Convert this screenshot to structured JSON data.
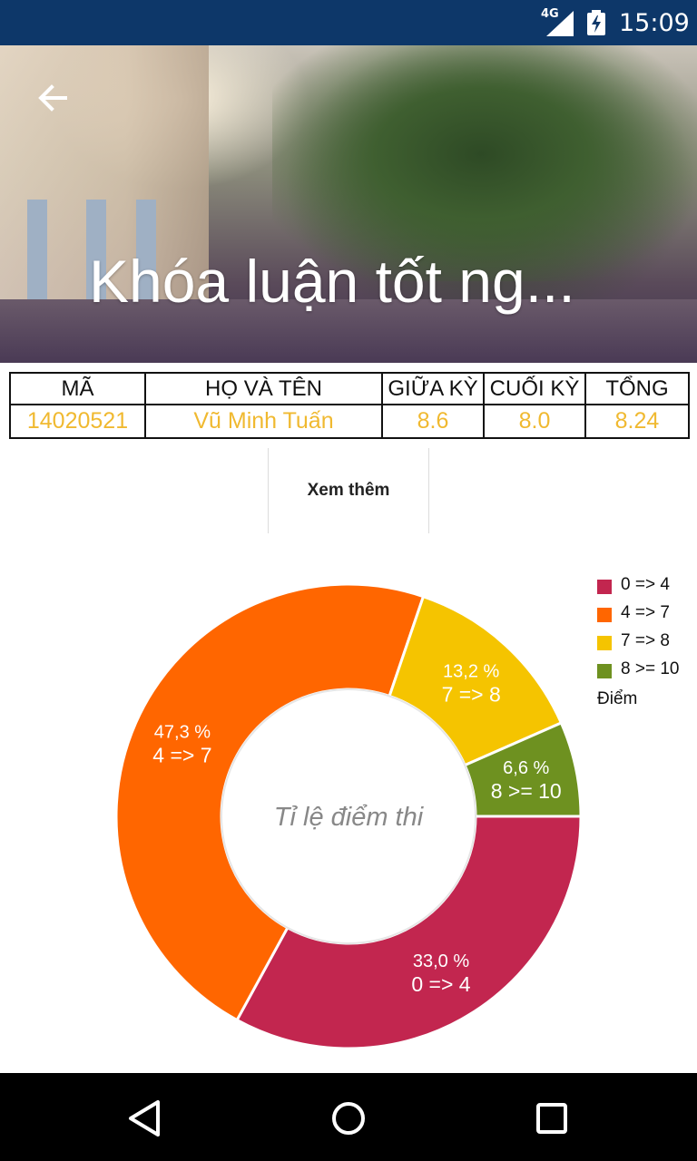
{
  "status_bar": {
    "network": "4G",
    "time": "15:09"
  },
  "header": {
    "title": "Khóa luận tốt ng...",
    "back_icon": "arrow-left-icon"
  },
  "table": {
    "headers": [
      "MÃ",
      "HỌ VÀ TÊN",
      "GIỮA KỲ",
      "CUỐI KỲ",
      "TỔNG"
    ],
    "row": [
      "14020521",
      "Vũ Minh Tuấn",
      "8.6",
      "8.0",
      "8.24"
    ]
  },
  "more_label": "Xem thêm",
  "chart_data": {
    "type": "pie",
    "style": "donut",
    "center_text": "Tỉ lệ điểm thi",
    "slices": [
      {
        "label": "0 => 4",
        "percent_text": "33,0 %",
        "value": 33.0,
        "color": "#c2264f"
      },
      {
        "label": "4 => 7",
        "percent_text": "47,3 %",
        "value": 47.3,
        "color": "#ff6600"
      },
      {
        "label": "7 => 8",
        "percent_text": "13,2 %",
        "value": 13.2,
        "color": "#f5c400"
      },
      {
        "label": "8 >= 10",
        "percent_text": "6,6 %",
        "value": 6.6,
        "color": "#6e9120"
      }
    ],
    "legend": {
      "position": "top-right",
      "title": "Điểm",
      "items": [
        "0 => 4",
        "4 => 7",
        "7 => 8",
        "8 >= 10"
      ]
    }
  },
  "nav": {
    "back": "back-triangle-icon",
    "home": "home-circle-icon",
    "recents": "recents-square-icon"
  }
}
